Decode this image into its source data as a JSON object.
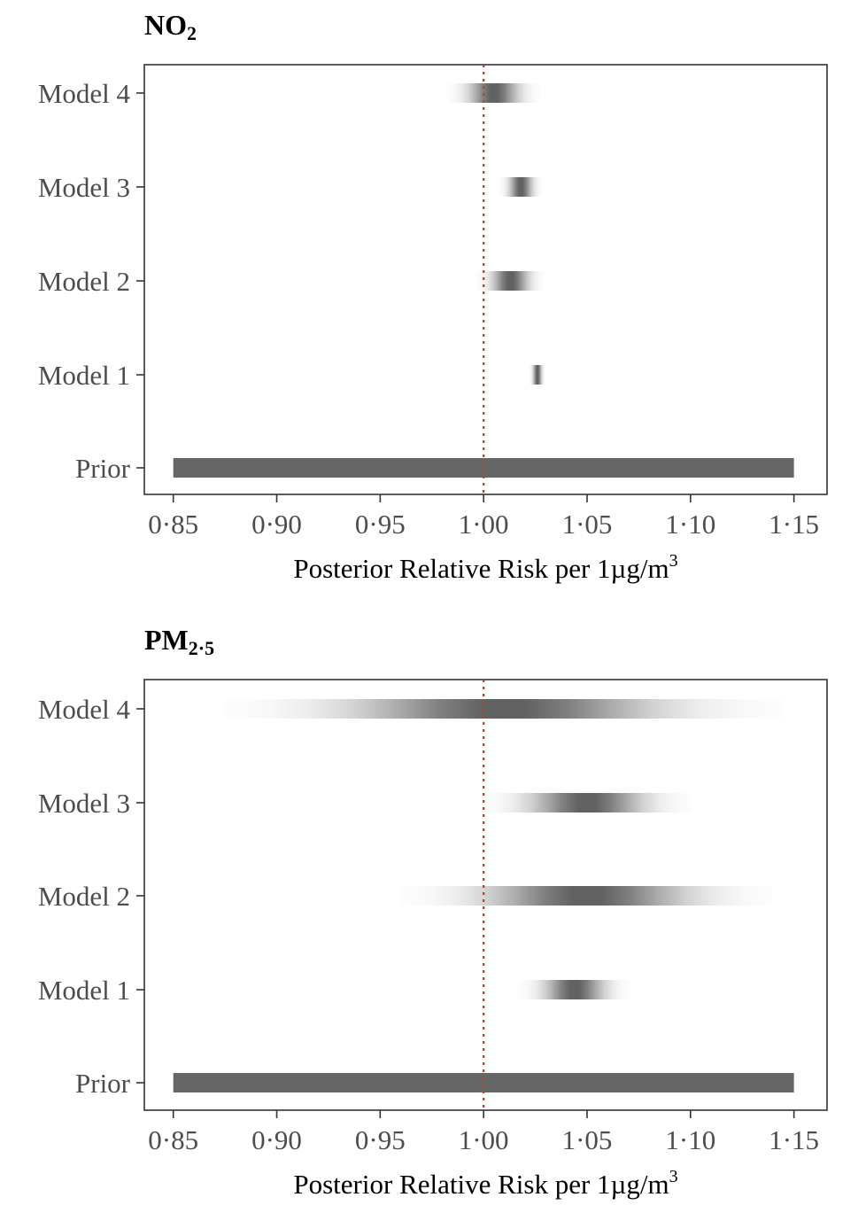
{
  "chart_data": [
    {
      "type": "gradient-interval",
      "title": "NO",
      "title_sub": "2",
      "xlabel": "Posterior Relative Risk per 1µg/m",
      "xlabel_sup": "3",
      "xlim": [
        0.836,
        1.166
      ],
      "xticks": [
        0.85,
        0.9,
        0.95,
        1.0,
        1.05,
        1.1,
        1.15
      ],
      "xtick_labels": [
        "0·85",
        "0·90",
        "0·95",
        "1·00",
        "1·05",
        "1·10",
        "1·15"
      ],
      "reference_line": 1.0,
      "reference_color": "#e8302a",
      "categories": [
        "Prior",
        "Model 1",
        "Model 2",
        "Model 3",
        "Model 4"
      ],
      "series": [
        {
          "category": "Prior",
          "uniform": true,
          "lo": 0.85,
          "hi": 1.15
        },
        {
          "category": "Model 1",
          "uniform": false,
          "center": 1.026,
          "spread": 0.0013
        },
        {
          "category": "Model 2",
          "uniform": false,
          "center": 1.013,
          "spread": 0.0055
        },
        {
          "category": "Model 3",
          "uniform": false,
          "center": 1.018,
          "spread": 0.0035
        },
        {
          "category": "Model 4",
          "uniform": false,
          "center": 1.005,
          "spread": 0.0075
        }
      ]
    },
    {
      "type": "gradient-interval",
      "title": "PM",
      "title_sub": "2·5",
      "xlabel": "Posterior Relative Risk per 1µg/m",
      "xlabel_sup": "3",
      "xlim": [
        0.836,
        1.166
      ],
      "xticks": [
        0.85,
        0.9,
        0.95,
        1.0,
        1.05,
        1.1,
        1.15
      ],
      "xtick_labels": [
        "0·85",
        "0·90",
        "0·95",
        "1·00",
        "1·05",
        "1·10",
        "1·15"
      ],
      "reference_line": 1.0,
      "reference_color": "#e8302a",
      "categories": [
        "Prior",
        "Model 1",
        "Model 2",
        "Model 3",
        "Model 4"
      ],
      "series": [
        {
          "category": "Prior",
          "uniform": true,
          "lo": 0.85,
          "hi": 1.15
        },
        {
          "category": "Model 1",
          "uniform": false,
          "center": 1.044,
          "spread": 0.009
        },
        {
          "category": "Model 2",
          "uniform": false,
          "center": 1.05,
          "spread": 0.03
        },
        {
          "category": "Model 3",
          "uniform": false,
          "center": 1.05,
          "spread": 0.017
        },
        {
          "category": "Model 4",
          "uniform": false,
          "center": 1.01,
          "spread": 0.045
        }
      ]
    }
  ]
}
